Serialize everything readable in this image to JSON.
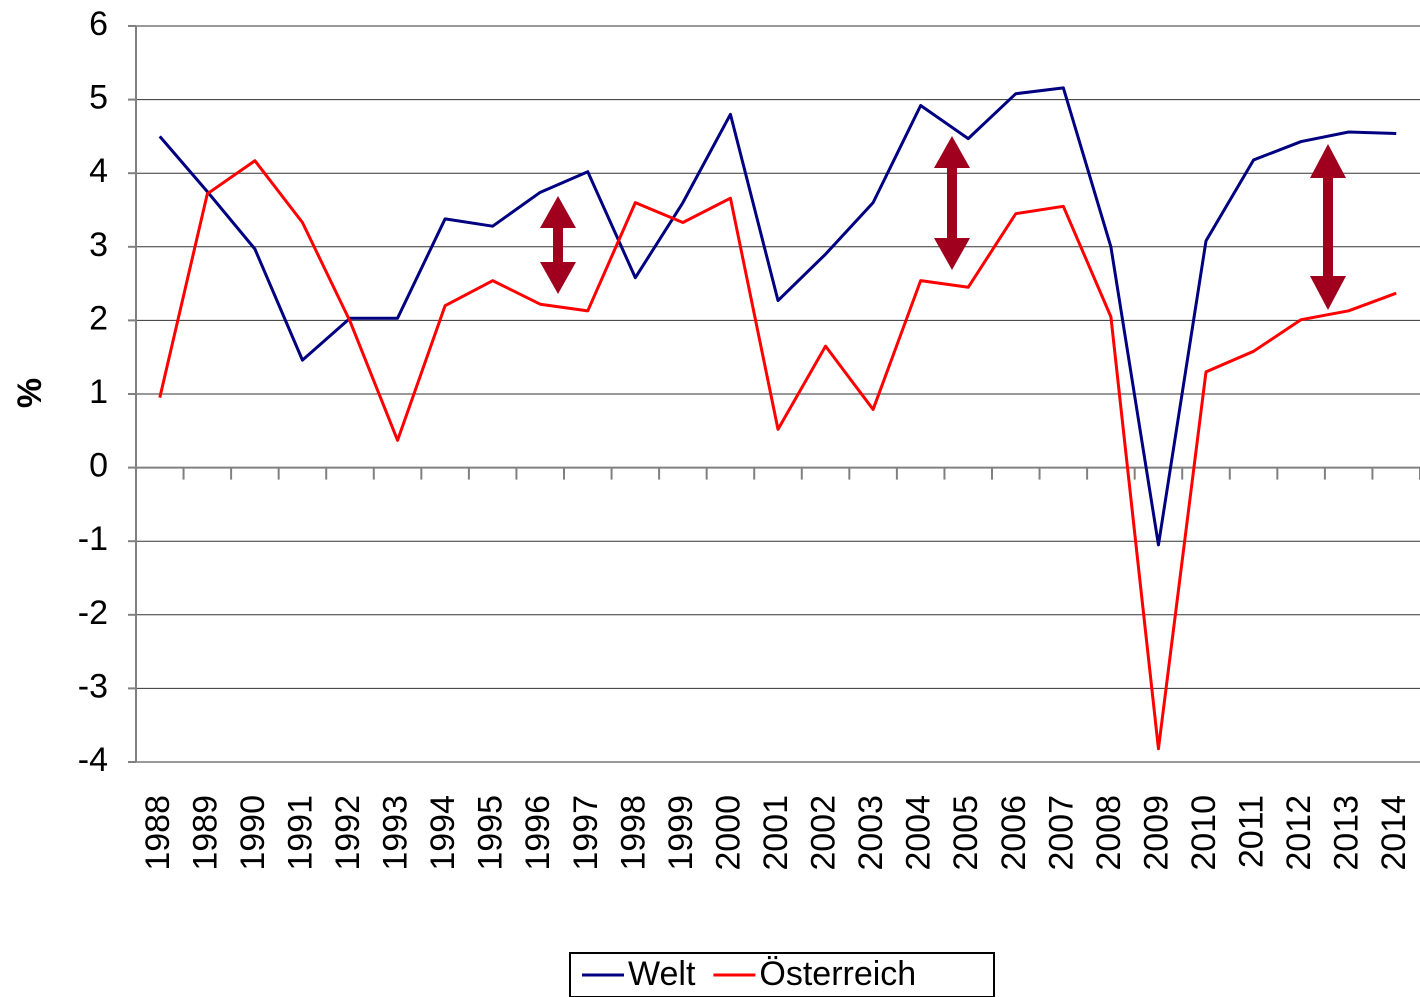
{
  "chart_data": {
    "type": "line",
    "y_label": "%",
    "categories": [
      "1988",
      "1989",
      "1990",
      "1991",
      "1992",
      "1993",
      "1994",
      "1995",
      "1996",
      "1997",
      "1998",
      "1999",
      "2000",
      "2001",
      "2002",
      "2003",
      "2004",
      "2005",
      "2006",
      "2007",
      "2008",
      "2009",
      "2010",
      "2011",
      "2012",
      "2013",
      "2014"
    ],
    "series": [
      {
        "name": "Welt",
        "color": "#000080",
        "values": [
          4.5,
          3.75,
          2.97,
          1.46,
          2.03,
          2.03,
          3.38,
          3.28,
          3.74,
          4.02,
          2.58,
          3.6,
          4.8,
          2.27,
          2.9,
          3.6,
          4.92,
          4.47,
          5.08,
          5.16,
          3.0,
          -1.05,
          3.08,
          4.18,
          4.43,
          4.56,
          4.54
        ]
      },
      {
        "name": "Österreich",
        "color": "#ff0000",
        "values": [
          0.95,
          3.72,
          4.17,
          3.33,
          1.99,
          0.37,
          2.2,
          2.54,
          2.22,
          2.13,
          3.6,
          3.33,
          3.66,
          0.52,
          1.65,
          0.79,
          2.54,
          2.45,
          3.45,
          3.55,
          2.05,
          -3.82,
          1.3,
          1.58,
          2.01,
          2.13,
          2.37
        ]
      }
    ],
    "ylim": [
      -4,
      6
    ],
    "yticks": [
      -4,
      -3,
      -2,
      -1,
      0,
      1,
      2,
      3,
      4,
      5,
      6
    ],
    "grid": true,
    "legend": "bottom"
  }
}
